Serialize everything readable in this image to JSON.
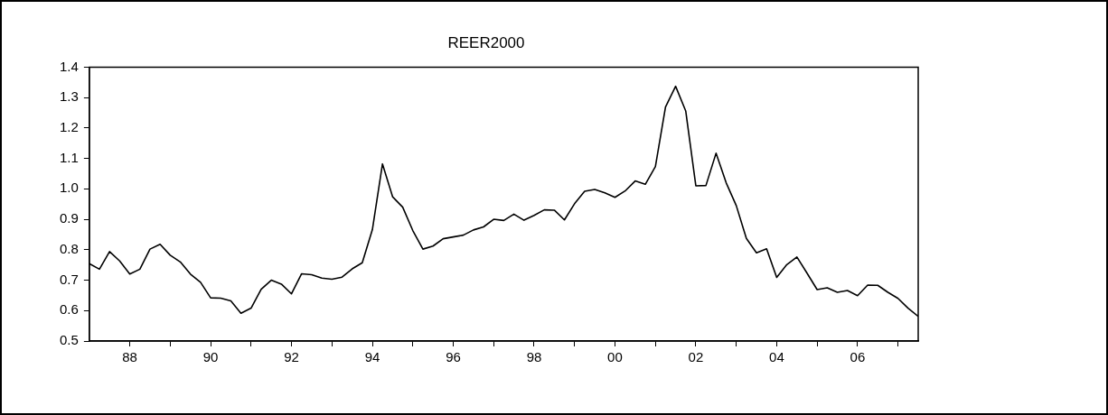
{
  "chart_data": {
    "type": "line",
    "title": "REER2000",
    "x": [
      1987,
      1987.25,
      1987.5,
      1987.75,
      1988,
      1988.25,
      1988.5,
      1988.75,
      1989,
      1989.25,
      1989.5,
      1989.75,
      1990,
      1990.25,
      1990.5,
      1990.75,
      1991,
      1991.25,
      1991.5,
      1991.75,
      1992,
      1992.25,
      1992.5,
      1992.75,
      1993,
      1993.25,
      1993.5,
      1993.75,
      1994,
      1994.25,
      1994.5,
      1994.75,
      1995,
      1995.25,
      1995.5,
      1995.75,
      1996,
      1996.25,
      1996.5,
      1996.75,
      1997,
      1997.25,
      1997.5,
      1997.75,
      1998,
      1998.25,
      1998.5,
      1998.75,
      1999,
      1999.25,
      1999.5,
      1999.75,
      2000,
      2000.25,
      2000.5,
      2000.75,
      2001,
      2001.25,
      2001.5,
      2001.75,
      2002,
      2002.25,
      2002.5,
      2002.75,
      2003,
      2003.25,
      2003.5,
      2003.75,
      2004,
      2004.25,
      2004.5,
      2004.75,
      2005,
      2005.25,
      2005.5,
      2005.75,
      2006,
      2006.25,
      2006.5,
      2006.75,
      2007,
      2007.25,
      2007.5
    ],
    "series": [
      {
        "color": "#000000",
        "values": [
          0.754,
          0.736,
          0.794,
          0.763,
          0.72,
          0.736,
          0.802,
          0.818,
          0.782,
          0.76,
          0.72,
          0.693,
          0.642,
          0.641,
          0.632,
          0.591,
          0.608,
          0.67,
          0.7,
          0.687,
          0.655,
          0.721,
          0.718,
          0.707,
          0.703,
          0.71,
          0.737,
          0.757,
          0.866,
          1.082,
          0.974,
          0.94,
          0.863,
          0.802,
          0.812,
          0.836,
          0.842,
          0.848,
          0.865,
          0.875,
          0.9,
          0.896,
          0.917,
          0.897,
          0.913,
          0.931,
          0.93,
          0.898,
          0.951,
          0.992,
          0.998,
          0.987,
          0.972,
          0.993,
          1.026,
          1.015,
          1.073,
          1.269,
          1.337,
          1.256,
          1.01,
          1.011,
          1.117,
          1.02,
          0.945,
          0.837,
          0.79,
          0.803,
          0.709,
          0.751,
          0.776,
          0.723,
          0.669,
          0.675,
          0.66,
          0.666,
          0.649,
          0.684,
          0.683,
          0.66,
          0.64,
          0.608,
          0.581
        ]
      }
    ],
    "xlim": [
      1987,
      2007.5
    ],
    "xticks": [
      {
        "value": 1988,
        "label": "88"
      },
      {
        "value": 1989,
        "label": null
      },
      {
        "value": 1990,
        "label": "90"
      },
      {
        "value": 1991,
        "label": null
      },
      {
        "value": 1992,
        "label": "92"
      },
      {
        "value": 1993,
        "label": null
      },
      {
        "value": 1994,
        "label": "94"
      },
      {
        "value": 1995,
        "label": null
      },
      {
        "value": 1996,
        "label": "96"
      },
      {
        "value": 1997,
        "label": null
      },
      {
        "value": 1998,
        "label": "98"
      },
      {
        "value": 1999,
        "label": null
      },
      {
        "value": 2000,
        "label": "00"
      },
      {
        "value": 2001,
        "label": null
      },
      {
        "value": 2002,
        "label": "02"
      },
      {
        "value": 2003,
        "label": null
      },
      {
        "value": 2004,
        "label": "04"
      },
      {
        "value": 2005,
        "label": null
      },
      {
        "value": 2006,
        "label": "06"
      },
      {
        "value": 2007,
        "label": null
      }
    ],
    "ylim": [
      0.5,
      1.4
    ],
    "yticks": [
      {
        "value": 0.5,
        "label": "0.5"
      },
      {
        "value": 0.6,
        "label": "0.6"
      },
      {
        "value": 0.7,
        "label": "0.7"
      },
      {
        "value": 0.8,
        "label": "0.8"
      },
      {
        "value": 0.9,
        "label": "0.9"
      },
      {
        "value": 1.0,
        "label": "1.0"
      },
      {
        "value": 1.1,
        "label": "1.1"
      },
      {
        "value": 1.2,
        "label": "1.2"
      },
      {
        "value": 1.3,
        "label": "1.3"
      },
      {
        "value": 1.4,
        "label": "1.4"
      }
    ],
    "grid": false,
    "legend": false,
    "marker": "none",
    "line_style": "solid"
  }
}
